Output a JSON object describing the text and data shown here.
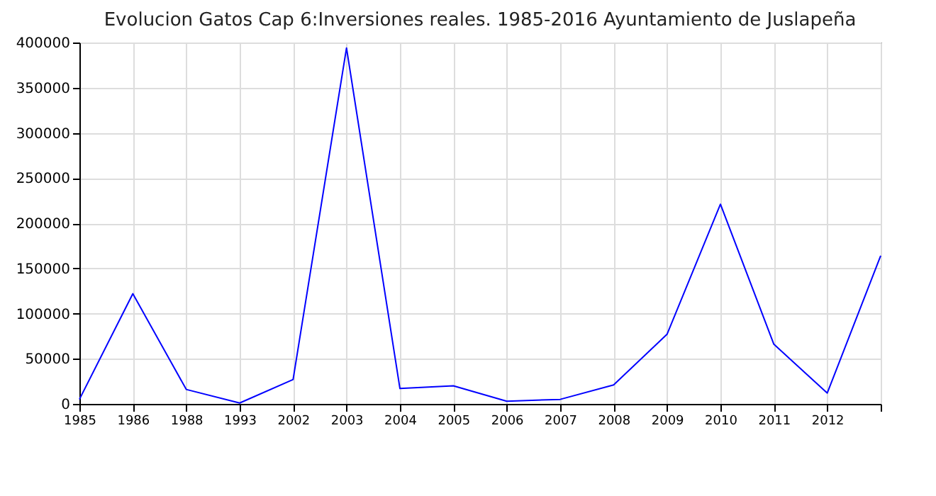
{
  "chart_data": {
    "type": "line",
    "title": "Evolucion Gatos Cap 6:Inversiones reales. 1985-2016 Ayuntamiento de Juslapeña",
    "categories": [
      "1985",
      "1986",
      "1988",
      "1993",
      "2002",
      "2003",
      "2004",
      "2005",
      "2006",
      "2007",
      "2008",
      "2009",
      "2010",
      "2011",
      "2012",
      null
    ],
    "series": [
      {
        "color": "#0000ff",
        "values": [
          5000,
          122000,
          16000,
          1000,
          27000,
          394000,
          17000,
          20000,
          3000,
          5000,
          21000,
          77000,
          221000,
          66000,
          12000,
          164000
        ]
      }
    ],
    "ylim": [
      0,
      400000
    ],
    "yticks": [
      0,
      50000,
      100000,
      150000,
      200000,
      250000,
      300000,
      350000,
      400000
    ],
    "grid": true,
    "legend": false,
    "marker": "none",
    "line_style": "solid"
  }
}
